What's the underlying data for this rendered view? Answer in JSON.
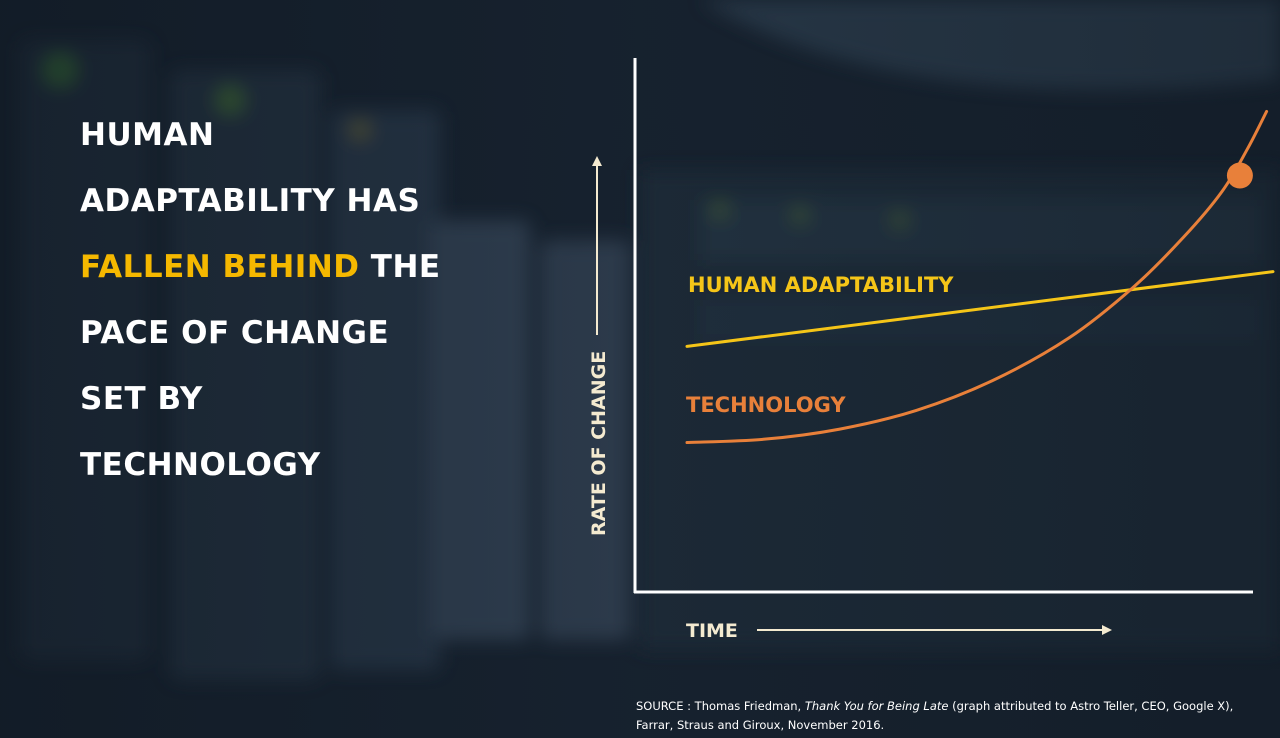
{
  "headline": {
    "line1": "Human",
    "line2": "adaptability has",
    "highlight": "fallen behind",
    "line3_rest": " the",
    "line4": "pace of change",
    "line5": "set by",
    "line6": "technology",
    "highlight_color": "#f5b800"
  },
  "chart_data": {
    "type": "line",
    "xlabel": "Time",
    "ylabel": "Rate of change",
    "xlim": [
      0,
      100
    ],
    "ylim": [
      0,
      100
    ],
    "grid": false,
    "series": [
      {
        "name": "Human adaptability",
        "color": "#f5c518",
        "points": [
          [
            8,
            46
          ],
          [
            100,
            60
          ]
        ]
      },
      {
        "name": "Technology",
        "color": "#e8803a",
        "points": [
          [
            8,
            28
          ],
          [
            20,
            28.6
          ],
          [
            32,
            30.5
          ],
          [
            44,
            34
          ],
          [
            56,
            39.6
          ],
          [
            68,
            47.6
          ],
          [
            78,
            57
          ],
          [
            86,
            66.5
          ],
          [
            92,
            75
          ],
          [
            96,
            83
          ],
          [
            99,
            90
          ]
        ]
      }
    ],
    "annotations": [
      {
        "type": "marker",
        "series": "Technology",
        "x": 94.8,
        "y": 78,
        "color": "#e8803a"
      }
    ]
  },
  "source": {
    "prefix": "SOURCE : Thomas Friedman, ",
    "book": "Thank You for Being Late",
    "suffix_line1": " (graph attributed to Astro Teller, CEO, Google X),",
    "line2": "Farrar, Straus and Giroux, November 2016."
  }
}
